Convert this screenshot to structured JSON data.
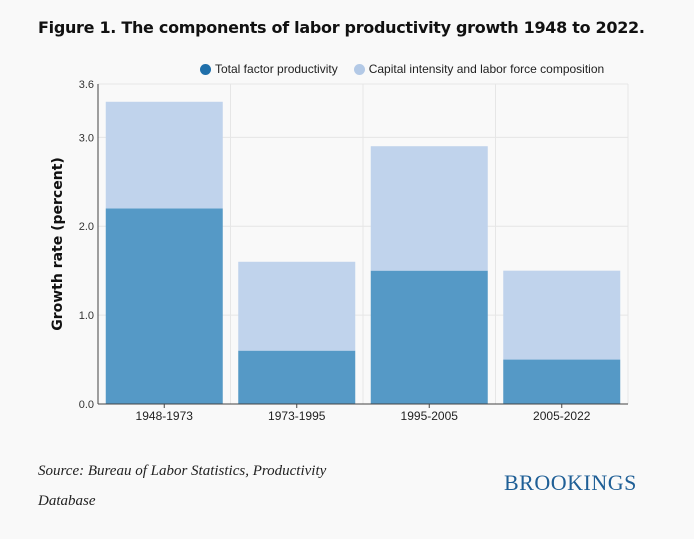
{
  "title": "Figure 1. The components of labor productivity growth 1948 to 2022.",
  "legend": {
    "items": [
      {
        "label": "Total factor productivity",
        "color": "#5599c6"
      },
      {
        "label": "Capital intensity and labor force composition",
        "color": "#c0d3ec"
      }
    ]
  },
  "source": "Source: Bureau of Labor Statistics, Productivity Database",
  "brand": "BROOKINGS",
  "chart_data": {
    "type": "bar",
    "stacked": true,
    "categories": [
      "1948-1973",
      "1973-1995",
      "1995-2005",
      "2005-2022"
    ],
    "series": [
      {
        "name": "Total factor productivity",
        "values": [
          2.2,
          0.6,
          1.5,
          0.5
        ],
        "color": "#5599c6"
      },
      {
        "name": "Capital intensity and labor force composition",
        "values": [
          1.2,
          1.0,
          1.4,
          1.0
        ],
        "color": "#c0d3ec"
      }
    ],
    "ylabel": "Growth rate (percent)",
    "ylim": [
      0,
      3.6
    ],
    "yticks": [
      "0.0",
      "1.0",
      "2.0",
      "3.0",
      "3.6"
    ],
    "grid": true
  }
}
